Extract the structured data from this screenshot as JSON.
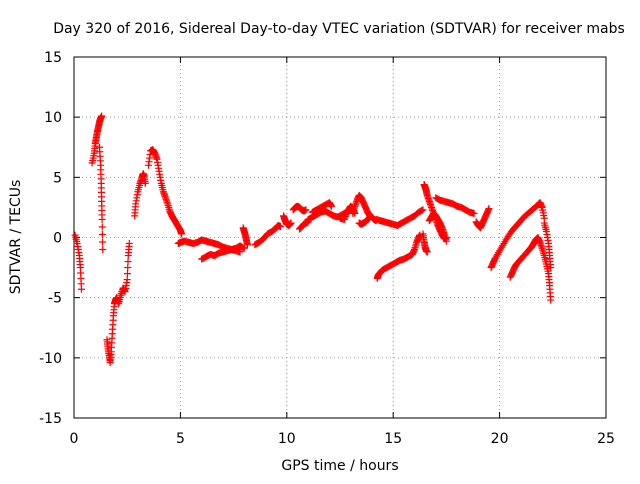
{
  "chart_data": {
    "type": "scatter",
    "title": "Day 320 of 2016, Sidereal Day-to-day VTEC variation (SDTVAR) for receiver mabs",
    "xlabel": "GPS time / hours",
    "ylabel": "SDTVAR / TECUs",
    "xlim": [
      0,
      25
    ],
    "ylim": [
      -15,
      15
    ],
    "xticks": [
      0,
      5,
      10,
      15,
      20,
      25
    ],
    "yticks": [
      -15,
      -10,
      -5,
      0,
      5,
      10,
      15
    ],
    "grid": true,
    "marker": "+",
    "color": "#ff0000",
    "series": [
      {
        "name": "s1",
        "x": [
          0.05,
          0.15,
          0.25,
          0.3,
          0.35
        ],
        "y": [
          0.2,
          -0.5,
          -1.5,
          -2.5,
          -4.3
        ]
      },
      {
        "name": "s2",
        "x": [
          0.85,
          0.95,
          1.0,
          1.05,
          1.1,
          1.15,
          1.2,
          1.25,
          1.3
        ],
        "y": [
          6.2,
          7.0,
          7.8,
          8.3,
          8.8,
          9.2,
          9.6,
          9.9,
          10.1
        ]
      },
      {
        "name": "s3",
        "x": [
          1.2,
          1.25,
          1.28,
          1.3,
          1.32,
          1.35
        ],
        "y": [
          7.5,
          6.0,
          4.5,
          3.0,
          1.5,
          -1.0
        ]
      },
      {
        "name": "s4",
        "x": [
          1.55,
          1.6,
          1.65,
          1.7,
          1.75,
          1.8,
          1.85,
          1.9,
          1.95,
          2.0,
          2.1,
          2.2,
          2.3,
          2.4,
          2.5,
          2.55,
          2.6
        ],
        "y": [
          -8.5,
          -9.2,
          -9.8,
          -10.4,
          -9.5,
          -8.0,
          -6.5,
          -5.5,
          -5.2,
          -5.0,
          -5.5,
          -4.8,
          -4.2,
          -4.5,
          -3.5,
          -1.5,
          -0.5
        ]
      },
      {
        "name": "s5",
        "x": [
          2.85,
          2.9,
          3.0,
          3.1,
          3.2,
          3.25,
          3.3,
          3.35
        ],
        "y": [
          1.8,
          2.8,
          3.8,
          4.5,
          5.0,
          5.3,
          5.1,
          4.5
        ]
      },
      {
        "name": "s6",
        "x": [
          3.5,
          3.6,
          3.7,
          3.8,
          3.9,
          4.0,
          4.1,
          4.2,
          4.3,
          4.4,
          4.5,
          4.6,
          4.7,
          4.8,
          4.9,
          5.0,
          5.05
        ],
        "y": [
          6.0,
          7.2,
          7.3,
          7.0,
          6.5,
          5.5,
          4.5,
          3.8,
          3.3,
          2.8,
          2.2,
          1.8,
          1.5,
          1.2,
          0.9,
          0.6,
          0.3
        ]
      },
      {
        "name": "s7",
        "x": [
          4.9,
          5.0,
          5.2,
          5.4,
          5.6,
          5.8,
          6.0,
          6.2,
          6.4,
          6.6,
          6.8,
          7.0,
          7.2,
          7.4,
          7.6,
          7.8,
          8.0
        ],
        "y": [
          -0.5,
          -0.4,
          -0.3,
          -0.4,
          -0.5,
          -0.4,
          -0.2,
          -0.3,
          -0.4,
          -0.5,
          -0.6,
          -0.8,
          -0.9,
          -1.0,
          -0.9,
          -0.7,
          -0.9
        ]
      },
      {
        "name": "s8",
        "x": [
          6.0,
          6.2,
          6.4,
          6.6,
          6.8,
          7.0,
          7.2,
          7.4,
          7.6,
          7.8
        ],
        "y": [
          -1.8,
          -1.6,
          -1.4,
          -1.5,
          -1.3,
          -1.2,
          -1.1,
          -1.0,
          -1.1,
          -1.2
        ]
      },
      {
        "name": "s9",
        "x": [
          7.95,
          8.0,
          8.05,
          8.1,
          8.15
        ],
        "y": [
          0.8,
          0.5,
          0.2,
          -0.2,
          -0.6
        ]
      },
      {
        "name": "s10",
        "x": [
          8.5,
          8.7,
          8.9,
          9.1,
          9.3,
          9.5,
          9.6,
          9.7
        ],
        "y": [
          -0.6,
          -0.4,
          -0.1,
          0.3,
          0.5,
          0.8,
          1.0,
          0.9
        ]
      },
      {
        "name": "s11",
        "x": [
          9.85,
          9.9,
          9.95,
          10.0,
          10.1,
          10.2
        ],
        "y": [
          1.8,
          1.5,
          1.3,
          1.1,
          1.0,
          1.2
        ]
      },
      {
        "name": "s12",
        "x": [
          10.3,
          10.4,
          10.5,
          10.6,
          10.7,
          10.8,
          10.9
        ],
        "y": [
          2.3,
          2.5,
          2.6,
          2.5,
          2.3,
          2.2,
          2.3
        ]
      },
      {
        "name": "s13",
        "x": [
          10.6,
          10.7,
          10.8,
          10.9,
          11.0
        ],
        "y": [
          0.7,
          0.9,
          1.1,
          1.2,
          1.3
        ]
      },
      {
        "name": "s14",
        "x": [
          11.0,
          11.2,
          11.4,
          11.6,
          11.8,
          12.0,
          12.2,
          12.4,
          12.6,
          12.8,
          13.0
        ],
        "y": [
          1.5,
          1.7,
          1.9,
          2.1,
          2.2,
          2.0,
          1.8,
          1.7,
          1.9,
          2.1,
          2.3
        ]
      },
      {
        "name": "s15",
        "x": [
          11.2,
          11.4,
          11.6,
          11.8,
          12.0,
          12.1
        ],
        "y": [
          2.1,
          2.3,
          2.5,
          2.7,
          2.9,
          2.6
        ]
      },
      {
        "name": "s16",
        "x": [
          12.5,
          12.7,
          12.8,
          12.9,
          13.0,
          13.1,
          13.2
        ],
        "y": [
          1.6,
          1.5,
          2.0,
          2.3,
          2.6,
          2.4,
          2.0
        ]
      },
      {
        "name": "s17",
        "x": [
          13.1,
          13.2,
          13.3,
          13.4,
          13.5,
          13.6,
          13.7,
          13.8,
          13.9,
          14.0,
          14.1,
          14.2
        ],
        "y": [
          2.0,
          2.6,
          3.1,
          3.5,
          3.3,
          2.9,
          2.5,
          2.1,
          1.8,
          1.7,
          1.5,
          1.4
        ]
      },
      {
        "name": "s18",
        "x": [
          13.4,
          13.5,
          13.6,
          13.7,
          13.8,
          13.9
        ],
        "y": [
          1.2,
          1.1,
          1.2,
          1.3,
          1.5,
          1.7
        ]
      },
      {
        "name": "s19",
        "x": [
          14.2,
          14.4,
          14.6,
          14.8,
          15.0,
          15.2,
          15.4,
          15.6,
          15.8,
          16.0,
          16.2,
          16.4
        ],
        "y": [
          1.5,
          1.4,
          1.3,
          1.2,
          1.1,
          1.0,
          1.2,
          1.4,
          1.6,
          1.8,
          2.1,
          2.3
        ]
      },
      {
        "name": "s20",
        "x": [
          14.25,
          14.3,
          14.4,
          14.5,
          14.7,
          14.9,
          15.1,
          15.3,
          15.5,
          15.7,
          15.9,
          16.0,
          16.1,
          16.2,
          16.25
        ],
        "y": [
          -3.4,
          -3.1,
          -2.9,
          -2.7,
          -2.5,
          -2.3,
          -2.1,
          -1.9,
          -1.8,
          -1.6,
          -1.4,
          -1.0,
          -0.4,
          0.0,
          0.2
        ]
      },
      {
        "name": "s21",
        "x": [
          16.4,
          16.45,
          16.5,
          16.55,
          16.6
        ],
        "y": [
          0.3,
          -0.3,
          -0.8,
          -1.1,
          -1.2
        ]
      },
      {
        "name": "s22",
        "x": [
          16.45,
          16.5,
          16.55,
          16.6,
          16.7,
          16.8,
          16.9,
          17.0,
          17.1,
          17.2,
          17.3,
          17.4,
          17.5
        ],
        "y": [
          4.4,
          4.2,
          3.9,
          3.5,
          3.0,
          2.5,
          2.0,
          1.5,
          1.0,
          0.6,
          0.2,
          -0.1,
          0.0
        ]
      },
      {
        "name": "s23",
        "x": [
          16.7,
          16.8,
          16.9,
          17.0,
          17.1,
          17.2,
          17.3,
          17.4,
          17.5
        ],
        "y": [
          1.4,
          1.7,
          2.0,
          1.8,
          1.5,
          1.2,
          0.8,
          0.3,
          -0.3
        ]
      },
      {
        "name": "s24",
        "x": [
          17.0,
          17.2,
          17.4,
          17.6,
          17.8,
          18.0,
          18.2,
          18.4,
          18.6,
          18.8
        ],
        "y": [
          3.3,
          3.1,
          3.0,
          2.9,
          2.8,
          2.6,
          2.5,
          2.3,
          2.1,
          2.0
        ]
      },
      {
        "name": "s25",
        "x": [
          18.9,
          19.0,
          19.1,
          19.2,
          19.3,
          19.4,
          19.5
        ],
        "y": [
          1.3,
          1.0,
          0.8,
          1.2,
          1.6,
          2.0,
          2.4
        ]
      },
      {
        "name": "s26",
        "x": [
          19.6,
          19.7,
          19.8,
          20.0,
          20.2,
          20.4,
          20.6,
          20.8,
          21.0,
          21.2,
          21.4,
          21.6,
          21.8,
          21.9,
          22.0,
          22.1
        ],
        "y": [
          -2.5,
          -2.1,
          -1.7,
          -1.1,
          -0.5,
          0.1,
          0.6,
          1.0,
          1.4,
          1.8,
          2.1,
          2.4,
          2.7,
          2.9,
          2.5,
          1.6
        ]
      },
      {
        "name": "s27",
        "x": [
          22.1,
          22.2,
          22.3,
          22.35,
          22.4
        ],
        "y": [
          1.2,
          0.5,
          -0.5,
          -1.5,
          -2.5
        ]
      },
      {
        "name": "s28",
        "x": [
          20.5,
          20.6,
          20.7,
          20.8,
          21.0,
          21.2,
          21.4,
          21.5,
          21.6,
          21.7,
          21.8,
          21.9,
          22.0,
          22.1,
          22.2,
          22.3,
          22.35,
          22.4
        ],
        "y": [
          -3.3,
          -2.9,
          -2.5,
          -2.2,
          -1.8,
          -1.4,
          -1.0,
          -0.8,
          -0.5,
          -0.2,
          0.0,
          -0.4,
          -0.9,
          -1.5,
          -2.2,
          -3.0,
          -4.0,
          -5.2
        ]
      }
    ]
  }
}
